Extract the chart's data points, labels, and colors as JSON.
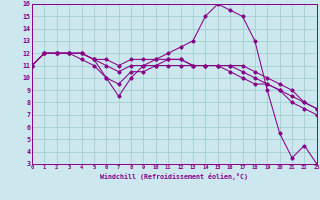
{
  "background_color": "#cce8ee",
  "line_color": "#880088",
  "grid_color": "#99cccc",
  "xlim": [
    0,
    23
  ],
  "ylim": [
    3,
    16
  ],
  "xticks": [
    0,
    1,
    2,
    3,
    4,
    5,
    6,
    7,
    8,
    9,
    10,
    11,
    12,
    13,
    14,
    15,
    16,
    17,
    18,
    19,
    20,
    21,
    22,
    23
  ],
  "yticks": [
    3,
    4,
    5,
    6,
    7,
    8,
    9,
    10,
    11,
    12,
    13,
    14,
    15,
    16
  ],
  "xlabel": "Windchill (Refroidissement éolien,°C)",
  "series": [
    [
      11,
      12,
      12,
      12,
      12,
      11.5,
      10,
      8.5,
      10,
      11,
      11.5,
      12,
      12.5,
      13,
      15,
      16,
      15.5,
      15,
      13,
      9,
      5.5,
      3.5,
      4.5,
      3
    ],
    [
      11,
      12,
      12,
      12,
      11.5,
      11,
      10,
      9.5,
      10.5,
      10.5,
      11,
      11,
      11,
      11,
      11,
      11,
      10.5,
      10,
      9.5,
      9.5,
      9,
      8.5,
      8,
      7.5
    ],
    [
      11,
      12,
      12,
      12,
      12,
      11.5,
      11.5,
      11,
      11.5,
      11.5,
      11.5,
      11.5,
      11.5,
      11,
      11,
      11,
      11,
      10.5,
      10,
      9.5,
      9,
      8,
      7.5,
      7
    ],
    [
      11,
      12,
      12,
      12,
      12,
      11.5,
      11,
      10.5,
      11,
      11,
      11,
      11.5,
      11.5,
      11,
      11,
      11,
      11,
      11,
      10.5,
      10,
      9.5,
      9,
      8,
      7.5
    ]
  ]
}
